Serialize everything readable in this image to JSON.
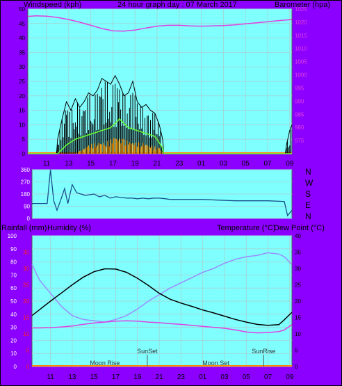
{
  "top": {
    "left_label": "Windspeed (kph)",
    "center_label": "24 hour graph day : 07 March 2017",
    "right_label": "Barometer (hpa)"
  },
  "right_dirs": [
    "N",
    "W",
    "S",
    "E",
    "N"
  ],
  "bottom_labels": {
    "rainfall": "Rainfall (mm)",
    "humidity": "Humidity (%)",
    "temperature": "Temperature (°C)",
    "dewpoint": "Dew Point (°C)"
  },
  "events": [
    {
      "label": "Moon Rise",
      "hour": 16.0,
      "row": "low"
    },
    {
      "label": "SunSet",
      "hour": 19.9,
      "row": "high"
    },
    {
      "label": "Moon Set",
      "hour": 26.2,
      "row": "low"
    },
    {
      "label": "SunRise",
      "hour": 30.6,
      "row": "high"
    }
  ],
  "colors": {
    "frame": "#8b00ff",
    "plot_bg": "#80ffff",
    "grid": "#9fd8d8",
    "barometer": "#e040e0",
    "gust": "#000000",
    "wind_avg": "#66ff33",
    "wind_orange": "#ff9900",
    "direction": "#1a4f8a",
    "temperature": "#000000",
    "humidity": "#9a8cff",
    "dewpoint": "#e040e0",
    "rain_axis": "#ff2020",
    "bottom_line": "#ff8800"
  },
  "chart_data": [
    {
      "type": "line",
      "title": "24 hour graph day : 07 March 2017",
      "xlabel": "",
      "ylabel": "Windspeed (kph)",
      "y2label": "Barometer (hpa)",
      "x_ticks": [
        "11",
        "13",
        "15",
        "17",
        "19",
        "21",
        "23",
        "01",
        "03",
        "05",
        "07",
        "09"
      ],
      "x_range_hours": [
        9.3,
        33.2
      ],
      "ylim": [
        0,
        50
      ],
      "y_ticks": [
        0,
        5,
        10,
        15,
        20,
        25,
        30,
        35,
        40,
        45,
        50
      ],
      "y2lim": [
        970,
        1025
      ],
      "y2_ticks": [
        975,
        980,
        985,
        990,
        995,
        1000,
        1005,
        1010,
        1015,
        1020,
        1025
      ],
      "grid": true,
      "series": [
        {
          "name": "Barometer",
          "axis": "right",
          "x": [
            9.3,
            10,
            11,
            12,
            13,
            14,
            15,
            16,
            17,
            18,
            19,
            20,
            21,
            22,
            23,
            24,
            25,
            26,
            27,
            28,
            29,
            30,
            31,
            32,
            33.2
          ],
          "values": [
            1022.2,
            1022.4,
            1022.3,
            1021.8,
            1021.0,
            1020.0,
            1018.8,
            1017.6,
            1016.7,
            1016.6,
            1017.0,
            1017.8,
            1018.5,
            1018.8,
            1018.8,
            1018.6,
            1018.5,
            1018.6,
            1018.7,
            1019.0,
            1019.4,
            1019.8,
            1020.2,
            1020.6,
            1021.0
          ]
        },
        {
          "name": "Wind gust",
          "axis": "left",
          "x": [
            9.3,
            11.9,
            12.0,
            12.4,
            12.8,
            13.2,
            13.6,
            14.0,
            14.4,
            14.8,
            15.2,
            15.6,
            16.0,
            16.4,
            16.8,
            17.2,
            17.6,
            18.0,
            18.4,
            18.8,
            19.2,
            19.6,
            20.0,
            20.4,
            20.8,
            21.2,
            21.5,
            21.6,
            32.6,
            32.7,
            33.0,
            33.2
          ],
          "values": [
            0,
            0,
            5,
            12,
            18,
            15,
            19,
            16,
            18,
            21,
            20,
            22,
            26,
            25,
            24,
            27,
            24,
            20,
            21,
            25,
            18,
            16,
            17,
            15,
            14,
            10,
            5,
            0,
            0,
            3,
            8,
            10
          ]
        },
        {
          "name": "Wind average",
          "axis": "left",
          "x": [
            9.3,
            12.0,
            12.8,
            13.6,
            14.4,
            15.2,
            16.0,
            16.8,
            17.6,
            18.4,
            19.2,
            20.0,
            20.8,
            21.5,
            21.6,
            33.2
          ],
          "values": [
            0,
            0,
            3,
            5,
            6,
            7,
            8,
            9,
            12,
            9,
            8,
            7,
            6,
            2,
            0,
            0
          ]
        },
        {
          "name": "Wind lull",
          "axis": "left",
          "x": [
            9.3,
            13.6,
            14.0,
            14.8,
            15.6,
            16.4,
            17.2,
            18.0,
            18.8,
            19.6,
            20.4,
            21.2,
            21.6,
            33.2
          ],
          "values": [
            0,
            0,
            1,
            3,
            4,
            4,
            6,
            5,
            4,
            4,
            3,
            2,
            0,
            0
          ]
        }
      ]
    },
    {
      "type": "line",
      "title": "",
      "ylabel": "",
      "x_range_hours": [
        9.3,
        33.2
      ],
      "ylim": [
        0,
        360
      ],
      "y_ticks": [
        0,
        90,
        180,
        270,
        360
      ],
      "right_labels": [
        "N",
        "W",
        "S",
        "E",
        "N"
      ],
      "series": [
        {
          "name": "Wind direction",
          "x": [
            9.3,
            10.7,
            11.0,
            11.3,
            11.6,
            12.0,
            12.3,
            12.6,
            13.0,
            13.4,
            13.8,
            14.2,
            14.6,
            15.0,
            15.5,
            16.0,
            16.5,
            17.0,
            17.5,
            18.0,
            18.5,
            19.0,
            19.5,
            20.0,
            20.5,
            21.0,
            21.6,
            22.0,
            25.0,
            28.0,
            31.0,
            32.5,
            32.8,
            33.0,
            33.2
          ],
          "values": [
            110,
            110,
            360,
            130,
            60,
            150,
            220,
            110,
            250,
            190,
            180,
            170,
            175,
            180,
            160,
            170,
            150,
            160,
            155,
            150,
            150,
            145,
            150,
            145,
            150,
            150,
            145,
            140,
            140,
            130,
            130,
            125,
            20,
            40,
            60
          ]
        }
      ]
    },
    {
      "type": "line",
      "title": "",
      "ylabel": "Rainfall (mm)",
      "x_ticks": [
        "11",
        "13",
        "15",
        "17",
        "19",
        "21",
        "23",
        "01",
        "03",
        "05",
        "07",
        "09"
      ],
      "x_range_hours": [
        9.3,
        33.2
      ],
      "ylim": [
        0,
        100
      ],
      "y_ticks": [
        0,
        10,
        20,
        30,
        40,
        50,
        60,
        70,
        80,
        90,
        100
      ],
      "rain_axis_ticks": [
        0,
        5,
        10,
        15,
        20,
        25,
        30,
        35
      ],
      "y2lim": [
        0,
        40
      ],
      "y2_ticks": [
        0,
        5,
        10,
        15,
        20,
        25,
        30,
        35,
        40
      ],
      "grid": true,
      "series": [
        {
          "name": "Temperature",
          "axis": "right",
          "x": [
            9.3,
            10,
            11,
            12,
            13,
            14,
            15,
            16,
            17,
            18,
            19,
            20,
            21,
            22,
            23,
            24,
            25,
            26,
            27,
            28,
            29,
            30,
            31,
            32,
            32.5,
            33.2
          ],
          "values": [
            15.6,
            17.4,
            20.0,
            22.5,
            25.0,
            27.3,
            29.0,
            29.9,
            29.8,
            28.8,
            27.0,
            24.8,
            22.4,
            20.6,
            19.4,
            18.4,
            17.3,
            16.4,
            15.4,
            14.4,
            13.6,
            12.9,
            12.6,
            12.8,
            14.3,
            16.6
          ]
        },
        {
          "name": "Humidity",
          "axis": "left",
          "x": [
            9.3,
            10,
            11,
            12,
            13,
            14,
            15,
            16,
            17,
            18,
            19,
            20,
            21,
            22,
            23,
            24,
            25,
            26,
            27,
            28,
            29,
            30,
            31,
            32,
            32.5,
            33.2
          ],
          "values": [
            78,
            66,
            56,
            46,
            39,
            36,
            35,
            34,
            36,
            39,
            44,
            50,
            55,
            60,
            64,
            68,
            72,
            75,
            79,
            82,
            84,
            85,
            87,
            86,
            84,
            78
          ]
        },
        {
          "name": "Dew Point",
          "axis": "right",
          "x": [
            9.3,
            10,
            11,
            12,
            13,
            14,
            15,
            16,
            17,
            18,
            19,
            20,
            21,
            22,
            23,
            24,
            25,
            26,
            27,
            28,
            29,
            30,
            31,
            32,
            32.5,
            33.2
          ],
          "values": [
            11.8,
            11.8,
            11.9,
            12.1,
            12.4,
            12.9,
            13.3,
            13.6,
            13.9,
            14.0,
            13.9,
            13.6,
            13.4,
            13.1,
            12.9,
            12.6,
            12.3,
            12.0,
            11.7,
            11.2,
            10.6,
            10.3,
            10.4,
            10.7,
            11.2,
            12.8
          ]
        }
      ]
    }
  ]
}
